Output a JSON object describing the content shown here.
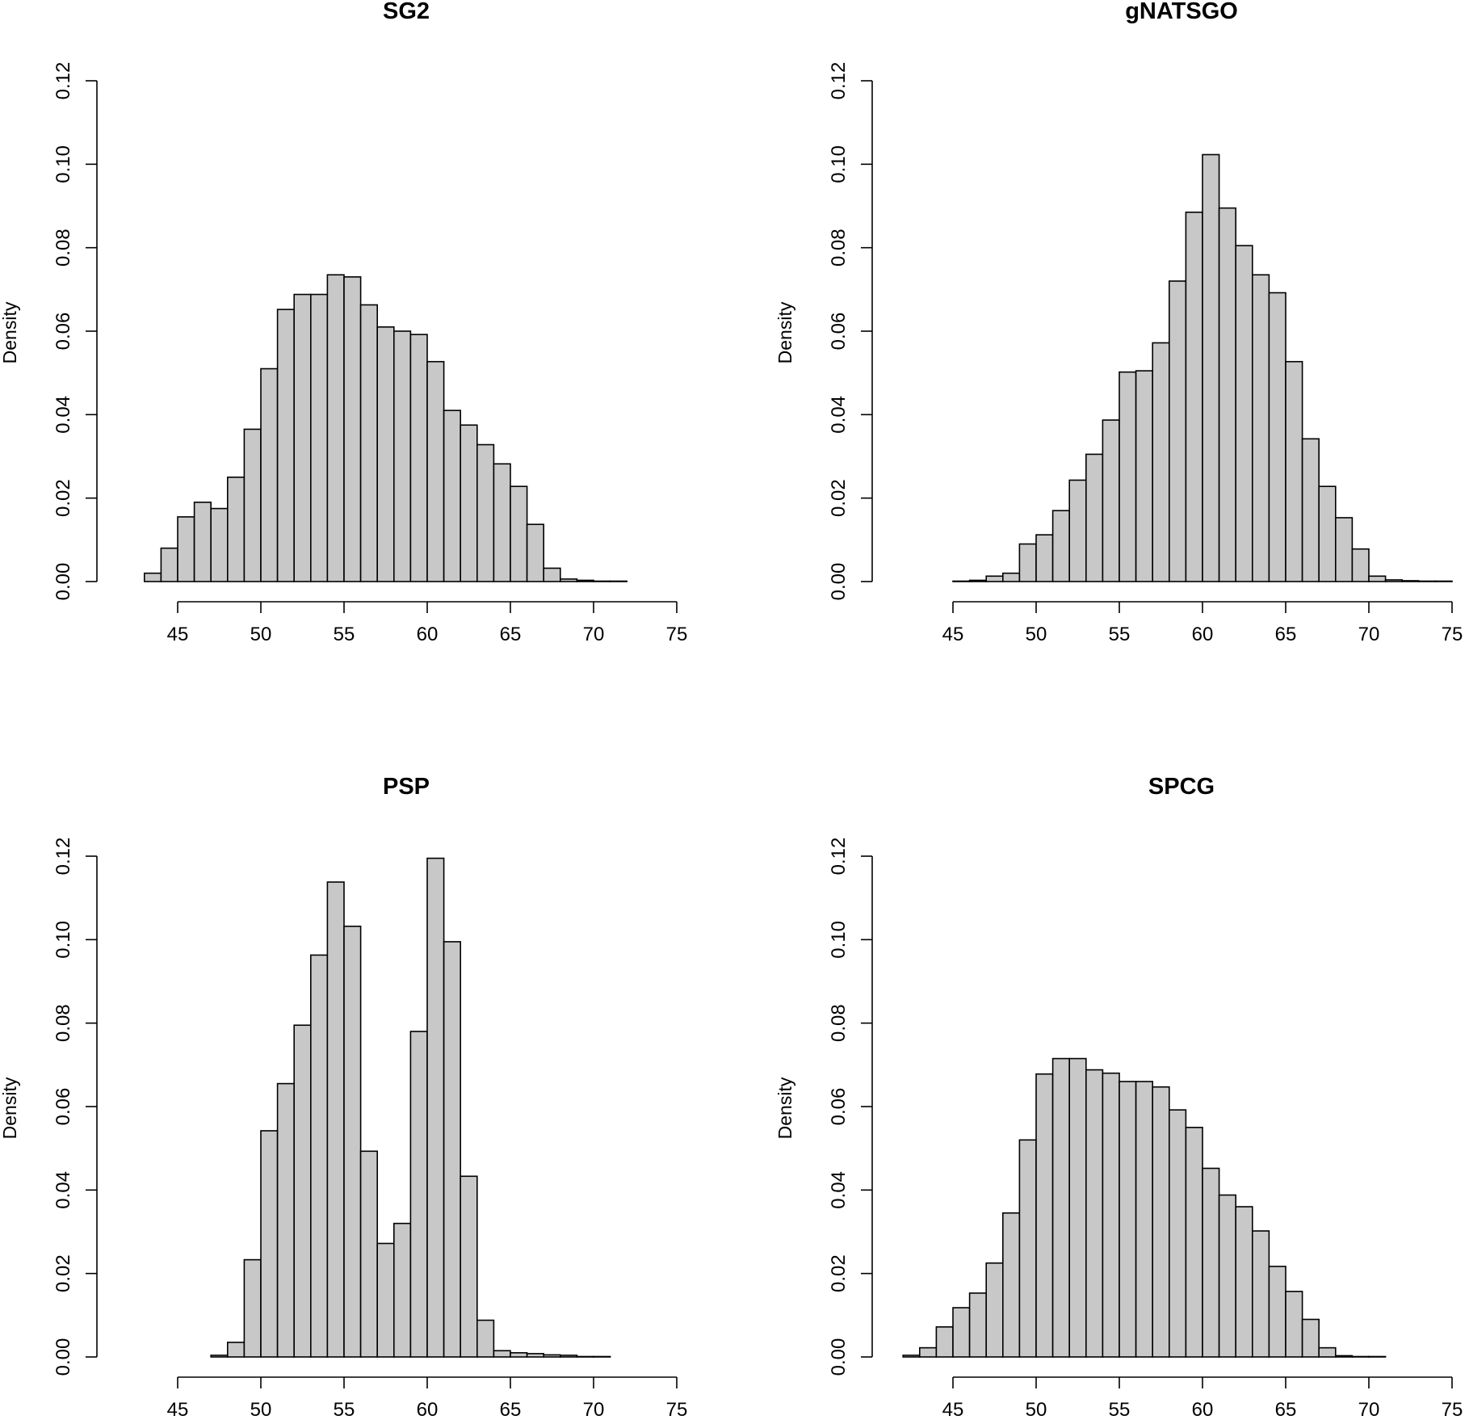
{
  "chart_data": [
    {
      "type": "histogram",
      "title": "SG2",
      "xlabel": "",
      "ylabel": "Density",
      "xlim": [
        45,
        75
      ],
      "ylim": [
        0,
        0.12
      ],
      "xticks": [
        45,
        50,
        55,
        60,
        65,
        70,
        75
      ],
      "yticks": [
        "0.00",
        "0.02",
        "0.04",
        "0.06",
        "0.08",
        "0.10",
        "0.12"
      ],
      "bin_start": 43,
      "bin_width": 1,
      "values": [
        0.002,
        0.008,
        0.0155,
        0.019,
        0.0175,
        0.025,
        0.0365,
        0.051,
        0.0652,
        0.0688,
        0.0688,
        0.0735,
        0.073,
        0.0663,
        0.061,
        0.06,
        0.0592,
        0.0527,
        0.041,
        0.0375,
        0.0328,
        0.0282,
        0.0228,
        0.0137,
        0.0032,
        0.0006,
        0.0003,
        0.0001,
        0.0001,
        0.0
      ]
    },
    {
      "type": "histogram",
      "title": "gNATSGO",
      "xlabel": "",
      "ylabel": "Density",
      "xlim": [
        45,
        75
      ],
      "ylim": [
        0,
        0.12
      ],
      "xticks": [
        45,
        50,
        55,
        60,
        65,
        70,
        75
      ],
      "yticks": [
        "0.00",
        "0.02",
        "0.04",
        "0.06",
        "0.08",
        "0.10",
        "0.12"
      ],
      "bin_start": 45,
      "bin_width": 1,
      "values": [
        0.0001,
        0.0003,
        0.0013,
        0.002,
        0.009,
        0.0112,
        0.017,
        0.0243,
        0.0305,
        0.0387,
        0.0502,
        0.0505,
        0.0572,
        0.072,
        0.0885,
        0.1023,
        0.0895,
        0.0805,
        0.0735,
        0.0692,
        0.0527,
        0.0342,
        0.0228,
        0.0153,
        0.0078,
        0.0013,
        0.0004,
        0.0002,
        0.0001,
        0.0001,
        0.0
      ]
    },
    {
      "type": "histogram",
      "title": "PSP",
      "xlabel": "",
      "ylabel": "Density",
      "xlim": [
        45,
        75
      ],
      "ylim": [
        0,
        0.12
      ],
      "xticks": [
        45,
        50,
        55,
        60,
        65,
        70,
        75
      ],
      "yticks": [
        "0.00",
        "0.02",
        "0.04",
        "0.06",
        "0.08",
        "0.10",
        "0.12"
      ],
      "bin_start": 46,
      "bin_width": 1,
      "values": [
        0.0,
        0.0004,
        0.0035,
        0.0233,
        0.0542,
        0.0655,
        0.0795,
        0.0963,
        0.1138,
        0.1032,
        0.0493,
        0.0272,
        0.032,
        0.078,
        0.1195,
        0.0995,
        0.0433,
        0.0088,
        0.0015,
        0.001,
        0.0008,
        0.0005,
        0.0004,
        0.0001,
        0.0001,
        0.0
      ]
    },
    {
      "type": "histogram",
      "title": "SPCG",
      "xlabel": "",
      "ylabel": "Density",
      "xlim": [
        45,
        75
      ],
      "ylim": [
        0,
        0.12
      ],
      "xticks": [
        45,
        50,
        55,
        60,
        65,
        70,
        75
      ],
      "yticks": [
        "0.00",
        "0.02",
        "0.04",
        "0.06",
        "0.08",
        "0.10",
        "0.12"
      ],
      "bin_start": 41,
      "bin_width": 1,
      "values": [
        0.0,
        0.0004,
        0.0022,
        0.0072,
        0.0118,
        0.0153,
        0.0225,
        0.0345,
        0.052,
        0.0678,
        0.0715,
        0.0715,
        0.0688,
        0.068,
        0.066,
        0.066,
        0.0647,
        0.0592,
        0.055,
        0.0452,
        0.0388,
        0.036,
        0.0302,
        0.0217,
        0.0157,
        0.009,
        0.0022,
        0.0003,
        0.0001,
        0.0001
      ]
    }
  ]
}
